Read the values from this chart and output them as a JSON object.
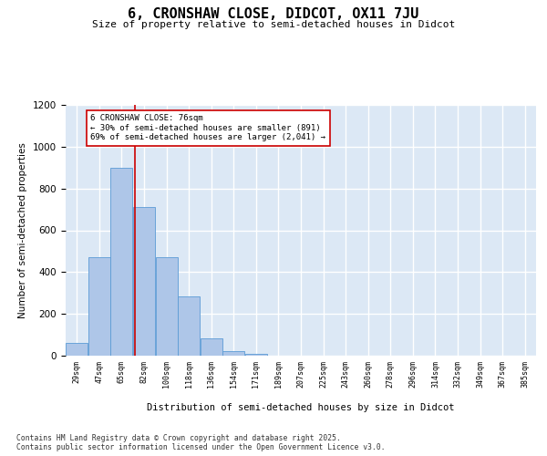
{
  "title": "6, CRONSHAW CLOSE, DIDCOT, OX11 7JU",
  "subtitle": "Size of property relative to semi-detached houses in Didcot",
  "xlabel": "Distribution of semi-detached houses by size in Didcot",
  "ylabel": "Number of semi-detached properties",
  "footnote1": "Contains HM Land Registry data © Crown copyright and database right 2025.",
  "footnote2": "Contains public sector information licensed under the Open Government Licence v3.0.",
  "annotation_title": "6 CRONSHAW CLOSE: 76sqm",
  "annotation_line1": "← 30% of semi-detached houses are smaller (891)",
  "annotation_line2": "69% of semi-detached houses are larger (2,041) →",
  "bar_color": "#aec6e8",
  "bar_edge_color": "#5b9bd5",
  "bg_color": "#dce8f5",
  "grid_color": "#ffffff",
  "ref_line_color": "#cc0000",
  "ref_line_x": 76,
  "categories": [
    "29sqm",
    "47sqm",
    "65sqm",
    "82sqm",
    "100sqm",
    "118sqm",
    "136sqm",
    "154sqm",
    "171sqm",
    "189sqm",
    "207sqm",
    "225sqm",
    "243sqm",
    "260sqm",
    "278sqm",
    "296sqm",
    "314sqm",
    "332sqm",
    "349sqm",
    "367sqm",
    "385sqm"
  ],
  "bin_edges": [
    20,
    38,
    56,
    74,
    92,
    110,
    128,
    146,
    164,
    182,
    200,
    218,
    236,
    254,
    272,
    290,
    308,
    326,
    344,
    362,
    380,
    398
  ],
  "values": [
    60,
    470,
    900,
    710,
    470,
    285,
    85,
    20,
    8,
    0,
    0,
    0,
    0,
    0,
    0,
    0,
    0,
    0,
    0,
    0,
    0
  ],
  "ylim": [
    0,
    1200
  ],
  "yticks": [
    0,
    200,
    400,
    600,
    800,
    1000,
    1200
  ],
  "fig_width": 6.0,
  "fig_height": 5.0,
  "dpi": 100
}
